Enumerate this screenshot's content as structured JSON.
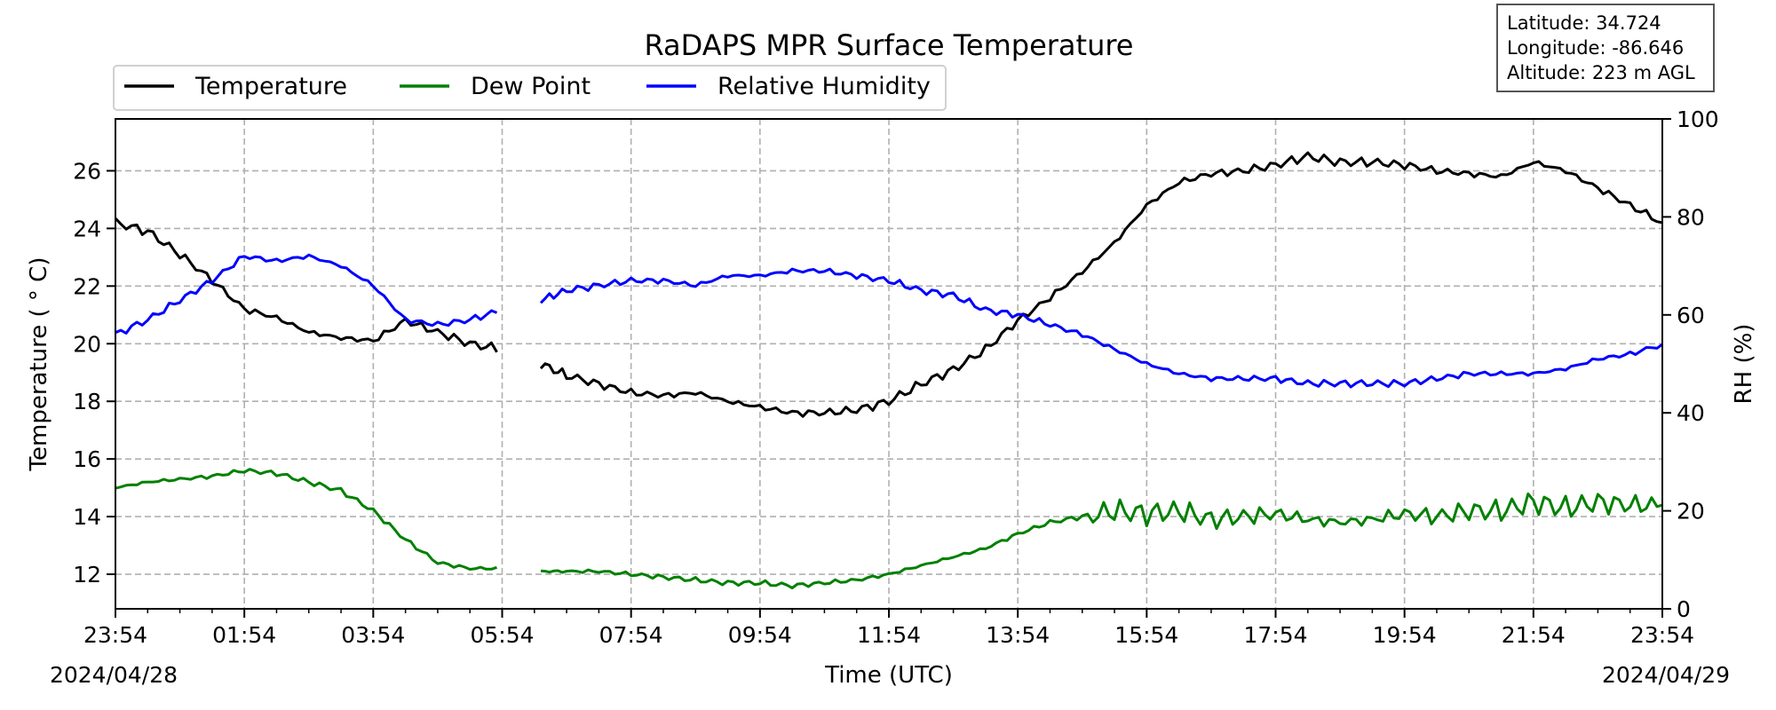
{
  "chart_data": {
    "type": "line",
    "title": "RaDAPS MPR Surface Temperature",
    "xlabel": "Time (UTC)",
    "ylabel": "Temperature ($^\\circ$C)",
    "ylabel_display": "Temperature ( ° C)",
    "y2label": "RH (%)",
    "xlim": [
      "2024-04-28 23:54",
      "2024-04-29 23:54"
    ],
    "ylim": [
      10.8,
      27.8
    ],
    "y2lim": [
      0,
      100
    ],
    "xticks": [
      "23:54",
      "01:54",
      "03:54",
      "05:54",
      "07:54",
      "09:54",
      "11:54",
      "13:54",
      "15:54",
      "17:54",
      "19:54",
      "21:54",
      "23:54"
    ],
    "yticks": [
      12,
      14,
      16,
      18,
      20,
      22,
      24,
      26
    ],
    "y2ticks": [
      0,
      20,
      40,
      60,
      80,
      100
    ],
    "date_start": "2024/04/28",
    "date_end": "2024/04/29",
    "grid": true,
    "legend_position": "top-left",
    "info_box": [
      "Latitude: 34.724",
      "Longitude: -86.646",
      "Altitude: 223 m AGL"
    ],
    "data_gap": [
      "2024-04-29 05:54",
      "2024-04-29 06:30"
    ],
    "x_times": [
      "2024-04-28 23:54",
      "2024-04-29 00:24",
      "2024-04-29 00:54",
      "2024-04-29 01:24",
      "2024-04-29 01:54",
      "2024-04-29 02:24",
      "2024-04-29 02:54",
      "2024-04-29 03:24",
      "2024-04-29 03:54",
      "2024-04-29 04:24",
      "2024-04-29 04:54",
      "2024-04-29 05:24",
      "2024-04-29 05:54",
      "2024-04-29 06:30",
      "2024-04-29 06:54",
      "2024-04-29 07:24",
      "2024-04-29 07:54",
      "2024-04-29 08:24",
      "2024-04-29 08:54",
      "2024-04-29 09:24",
      "2024-04-29 09:54",
      "2024-04-29 10:24",
      "2024-04-29 10:54",
      "2024-04-29 11:24",
      "2024-04-29 11:54",
      "2024-04-29 12:24",
      "2024-04-29 12:54",
      "2024-04-29 13:24",
      "2024-04-29 13:54",
      "2024-04-29 14:24",
      "2024-04-29 14:54",
      "2024-04-29 15:24",
      "2024-04-29 15:54",
      "2024-04-29 16:24",
      "2024-04-29 16:54",
      "2024-04-29 17:24",
      "2024-04-29 17:54",
      "2024-04-29 18:24",
      "2024-04-29 18:54",
      "2024-04-29 19:24",
      "2024-04-29 19:54",
      "2024-04-29 20:24",
      "2024-04-29 20:54",
      "2024-04-29 21:24",
      "2024-04-29 21:54",
      "2024-04-29 22:24",
      "2024-04-29 22:54",
      "2024-04-29 23:24",
      "2024-04-29 23:54"
    ],
    "series": [
      {
        "name": "Temperature",
        "axis": "left",
        "color": "#000000",
        "values": [
          24.2,
          23.9,
          23.1,
          22.2,
          21.2,
          20.9,
          20.4,
          20.2,
          20.1,
          20.8,
          20.4,
          20.0,
          19.8,
          19.3,
          18.9,
          18.6,
          18.3,
          18.2,
          18.3,
          18.0,
          17.8,
          17.6,
          17.6,
          17.7,
          18.0,
          18.6,
          19.1,
          19.8,
          20.8,
          21.6,
          22.5,
          23.5,
          24.8,
          25.6,
          25.9,
          26.0,
          26.2,
          26.5,
          26.3,
          26.3,
          26.2,
          26.0,
          25.9,
          25.8,
          26.3,
          26.0,
          25.4,
          24.8,
          24.2
        ]
      },
      {
        "name": "Dew Point",
        "axis": "left",
        "color": "#008000",
        "values": [
          15.0,
          15.2,
          15.3,
          15.4,
          15.6,
          15.5,
          15.2,
          14.9,
          14.2,
          13.2,
          12.4,
          12.2,
          12.2,
          12.1,
          12.1,
          12.1,
          12.0,
          11.9,
          11.8,
          11.7,
          11.7,
          11.6,
          11.7,
          11.8,
          12.0,
          12.3,
          12.6,
          12.9,
          13.4,
          13.8,
          14.0,
          14.2,
          14.1,
          14.2,
          13.9,
          14.0,
          14.1,
          13.9,
          13.8,
          13.9,
          14.1,
          14.0,
          14.2,
          14.2,
          14.5,
          14.3,
          14.5,
          14.4,
          14.4
        ]
      },
      {
        "name": "Relative Humidity",
        "axis": "right",
        "color": "#0000ff",
        "values": [
          56,
          59,
          63,
          67,
          72,
          71,
          72,
          70,
          66,
          59,
          58,
          59,
          61,
          63,
          65,
          66,
          67,
          67,
          66,
          68,
          68,
          69,
          69,
          68,
          67,
          65,
          64,
          61,
          60,
          58,
          56,
          53,
          50,
          48,
          47,
          47,
          47,
          46,
          46,
          46,
          46,
          47,
          48,
          48,
          48,
          49,
          51,
          52,
          54
        ]
      }
    ]
  }
}
